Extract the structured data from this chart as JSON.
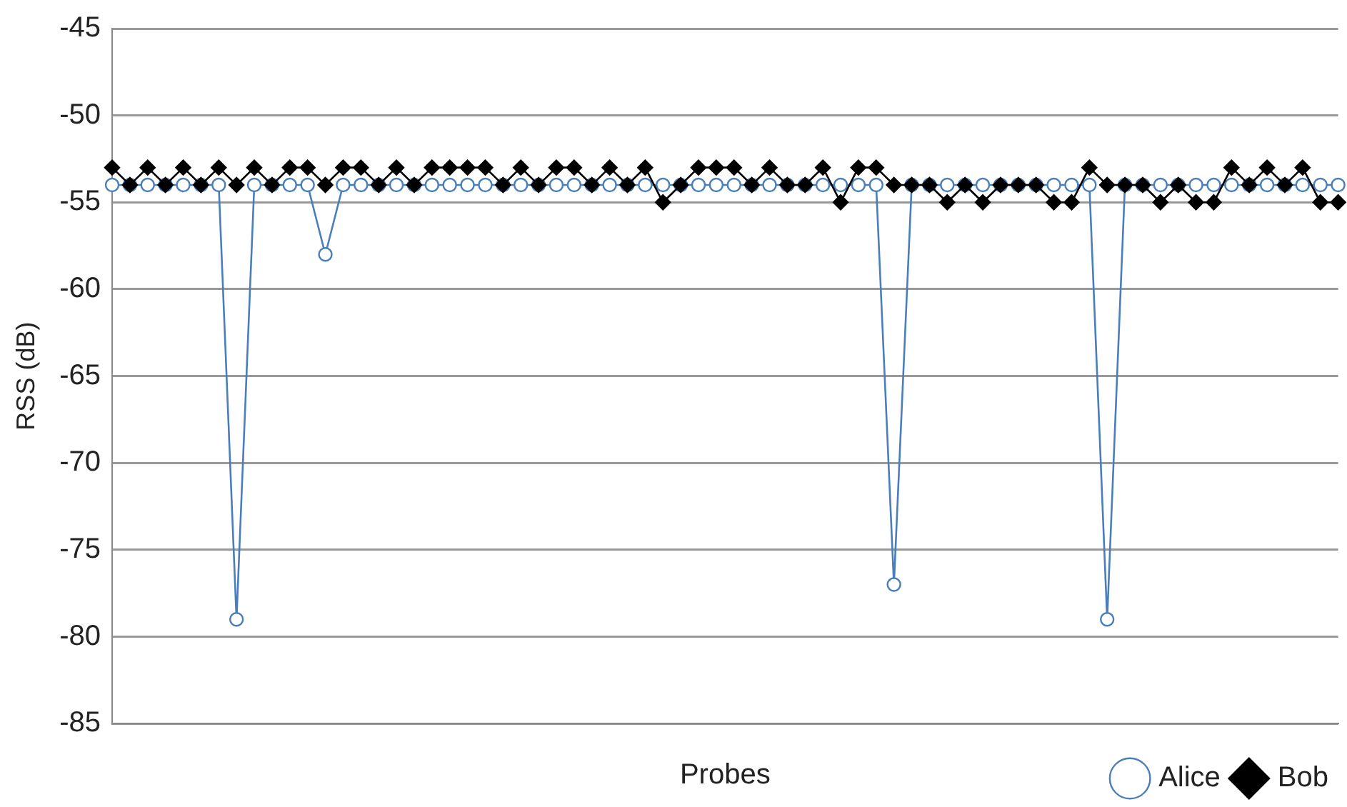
{
  "chart_data": {
    "type": "line",
    "xlabel": "Probes",
    "ylabel": "RSS (dB)",
    "categories": [
      null,
      null,
      null,
      null,
      null,
      null,
      null,
      null,
      null,
      null,
      null,
      null,
      null,
      null,
      null,
      null,
      null,
      null,
      null,
      null,
      null,
      null,
      null,
      null,
      null,
      null,
      null,
      null,
      null,
      null,
      null,
      null,
      null,
      null,
      null,
      null,
      null,
      null,
      null,
      null,
      null,
      null,
      null,
      null,
      null,
      null,
      null,
      null,
      null,
      null,
      null,
      null,
      null,
      null,
      null,
      null,
      null,
      null,
      null,
      null,
      null,
      null,
      null,
      null,
      null,
      null,
      null,
      null,
      null,
      null
    ],
    "series": [
      {
        "name": "Alice",
        "color": "#4a7ebb",
        "marker": "circle",
        "values": [
          -54,
          -54,
          -54,
          -54,
          -54,
          -54,
          -54,
          -79,
          -54,
          -54,
          -54,
          -54,
          -58,
          -54,
          -54,
          -54,
          -54,
          -54,
          -54,
          -54,
          -54,
          -54,
          -54,
          -54,
          -54,
          -54,
          -54,
          -54,
          -54,
          -54,
          -54,
          -54,
          -54,
          -54,
          -54,
          -54,
          -54,
          -54,
          -54,
          -54,
          -54,
          -54,
          -54,
          -54,
          -77,
          -54,
          -54,
          -54,
          -54,
          -54,
          -54,
          -54,
          -54,
          -54,
          -54,
          -54,
          -79,
          -54,
          -54,
          -54,
          -54,
          -54,
          -54,
          -54,
          -54,
          -54,
          -54,
          -54,
          -54,
          -54
        ]
      },
      {
        "name": "Bob",
        "color": "#000000",
        "marker": "diamond",
        "values": [
          -53,
          -54,
          -53,
          -54,
          -53,
          -54,
          -53,
          -54,
          -53,
          -54,
          -53,
          -53,
          -54,
          -53,
          -53,
          -54,
          -53,
          -54,
          -53,
          -53,
          -53,
          -53,
          -54,
          -53,
          -54,
          -53,
          -53,
          -54,
          -53,
          -54,
          -53,
          -55,
          -54,
          -53,
          -53,
          -53,
          -54,
          -53,
          -54,
          -54,
          -53,
          -55,
          -53,
          -53,
          -54,
          -54,
          -54,
          -55,
          -54,
          -55,
          -54,
          -54,
          -54,
          -55,
          -55,
          -53,
          -54,
          -54,
          -54,
          -55,
          -54,
          -55,
          -55,
          -53,
          -54,
          -53,
          -54,
          -53,
          -55,
          -55
        ]
      }
    ],
    "ylim": [
      -85,
      -45
    ],
    "yticks": [
      -85,
      -80,
      -75,
      -70,
      -65,
      -60,
      -55,
      -50,
      -45
    ],
    "grid": "y",
    "legend": "bottom right",
    "line_style": "solid"
  }
}
